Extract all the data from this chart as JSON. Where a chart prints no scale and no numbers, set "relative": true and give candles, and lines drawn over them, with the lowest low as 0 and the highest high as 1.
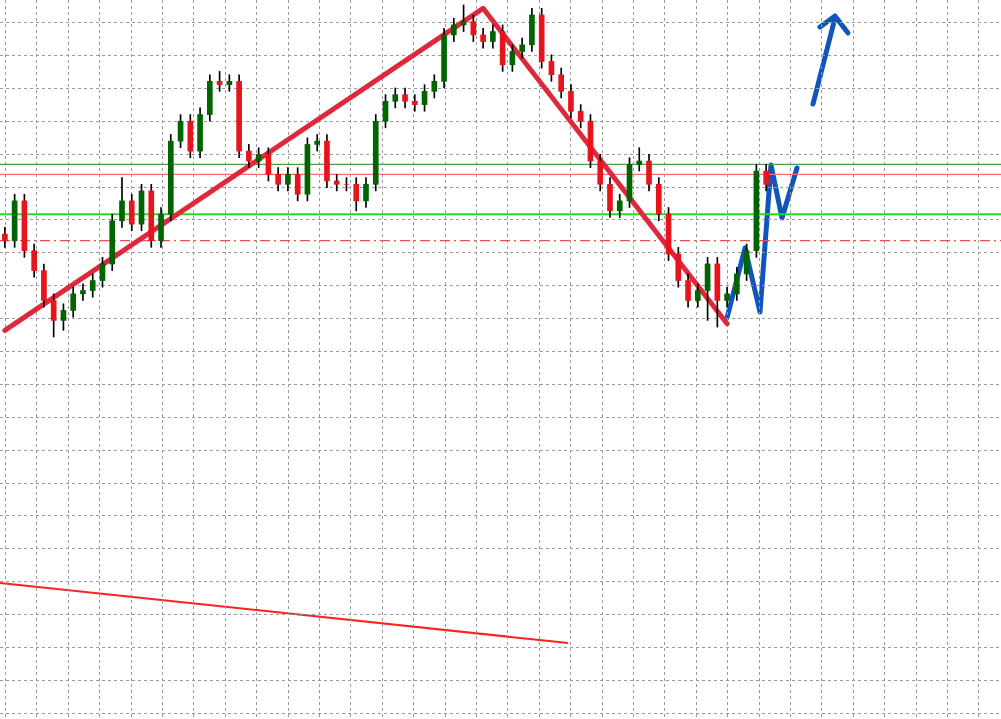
{
  "chart_data": {
    "type": "candlestick",
    "relative": true,
    "grid": true,
    "categories": [
      null,
      null,
      null,
      null,
      null,
      null,
      null,
      null,
      null,
      null,
      null,
      null,
      null,
      null,
      null,
      null,
      null,
      null,
      null,
      null,
      null,
      null,
      null,
      null,
      null,
      null,
      null,
      null,
      null,
      null,
      null,
      null,
      null,
      null,
      null,
      null,
      null,
      null,
      null,
      null,
      null,
      null,
      null,
      null,
      null,
      null,
      null,
      null,
      null,
      null,
      null,
      null,
      null,
      null,
      null,
      null,
      null,
      null,
      null,
      null,
      null,
      null,
      null,
      null,
      null,
      null,
      null,
      null,
      null,
      null,
      null,
      null,
      null,
      null,
      null,
      null,
      null,
      null,
      null
    ],
    "ohlc": [
      [
        0.31,
        0.33,
        0.27,
        0.29
      ],
      [
        0.29,
        0.43,
        0.27,
        0.41
      ],
      [
        0.41,
        0.43,
        0.24,
        0.26
      ],
      [
        0.26,
        0.28,
        0.18,
        0.2
      ],
      [
        0.2,
        0.22,
        0.09,
        0.11
      ],
      [
        0.11,
        0.13,
        0,
        0.05
      ],
      [
        0.05,
        0.1,
        0.02,
        0.08
      ],
      [
        0.08,
        0.15,
        0.06,
        0.13
      ],
      [
        0.13,
        0.16,
        0.11,
        0.14
      ],
      [
        0.14,
        0.19,
        0.12,
        0.17
      ],
      [
        0.17,
        0.24,
        0.15,
        0.22
      ],
      [
        0.22,
        0.37,
        0.2,
        0.35
      ],
      [
        0.35,
        0.48,
        0.33,
        0.41
      ],
      [
        0.41,
        0.43,
        0.32,
        0.34
      ],
      [
        0.34,
        0.46,
        0.32,
        0.44
      ],
      [
        0.44,
        0.46,
        0.27,
        0.29
      ],
      [
        0.29,
        0.39,
        0.27,
        0.37
      ],
      [
        0.37,
        0.61,
        0.35,
        0.59
      ],
      [
        0.59,
        0.67,
        0.57,
        0.65
      ],
      [
        0.65,
        0.67,
        0.54,
        0.56
      ],
      [
        0.56,
        0.69,
        0.54,
        0.67
      ],
      [
        0.67,
        0.79,
        0.65,
        0.77
      ],
      [
        0.77,
        0.8,
        0.74,
        0.76
      ],
      [
        0.76,
        0.79,
        0.74,
        0.77
      ],
      [
        0.77,
        0.79,
        0.54,
        0.56
      ],
      [
        0.56,
        0.58,
        0.51,
        0.53
      ],
      [
        0.53,
        0.57,
        0.51,
        0.55
      ],
      [
        0.55,
        0.57,
        0.47,
        0.49
      ],
      [
        0.49,
        0.51,
        0.44,
        0.46
      ],
      [
        0.46,
        0.51,
        0.44,
        0.49
      ],
      [
        0.49,
        0.51,
        0.41,
        0.43
      ],
      [
        0.43,
        0.6,
        0.41,
        0.58
      ],
      [
        0.58,
        0.61,
        0.56,
        0.59
      ],
      [
        0.59,
        0.61,
        0.45,
        0.47
      ],
      [
        0.47,
        0.49,
        0.44,
        0.46
      ],
      [
        0.46,
        0.48,
        0.44,
        0.46
      ],
      [
        0.46,
        0.48,
        0.38,
        0.41
      ],
      [
        0.41,
        0.48,
        0.39,
        0.46
      ],
      [
        0.46,
        0.67,
        0.44,
        0.65
      ],
      [
        0.65,
        0.73,
        0.63,
        0.71
      ],
      [
        0.71,
        0.75,
        0.69,
        0.73
      ],
      [
        0.73,
        0.75,
        0.69,
        0.71
      ],
      [
        0.71,
        0.73,
        0.68,
        0.7
      ],
      [
        0.7,
        0.76,
        0.68,
        0.74
      ],
      [
        0.74,
        0.79,
        0.72,
        0.77
      ],
      [
        0.77,
        0.93,
        0.75,
        0.91
      ],
      [
        0.91,
        0.96,
        0.89,
        0.94
      ],
      [
        0.94,
        1,
        0.92,
        0.95
      ],
      [
        0.95,
        0.97,
        0.89,
        0.91
      ],
      [
        0.91,
        0.93,
        0.87,
        0.89
      ],
      [
        0.89,
        0.94,
        0.87,
        0.92
      ],
      [
        0.92,
        0.94,
        0.8,
        0.82
      ],
      [
        0.82,
        0.88,
        0.8,
        0.86
      ],
      [
        0.86,
        0.9,
        0.84,
        0.88
      ],
      [
        0.88,
        0.99,
        0.86,
        0.97
      ],
      [
        0.97,
        0.99,
        0.81,
        0.83
      ],
      [
        0.83,
        0.85,
        0.77,
        0.79
      ],
      [
        0.79,
        0.81,
        0.72,
        0.74
      ],
      [
        0.74,
        0.76,
        0.66,
        0.68
      ],
      [
        0.68,
        0.7,
        0.63,
        0.65
      ],
      [
        0.65,
        0.67,
        0.51,
        0.53
      ],
      [
        0.53,
        0.55,
        0.44,
        0.46
      ],
      [
        0.46,
        0.48,
        0.36,
        0.38
      ],
      [
        0.38,
        0.43,
        0.36,
        0.41
      ],
      [
        0.41,
        0.54,
        0.39,
        0.52
      ],
      [
        0.52,
        0.57,
        0.5,
        0.53
      ],
      [
        0.53,
        0.55,
        0.44,
        0.46
      ],
      [
        0.46,
        0.48,
        0.35,
        0.37
      ],
      [
        0.37,
        0.39,
        0.23,
        0.25
      ],
      [
        0.25,
        0.27,
        0.15,
        0.17
      ],
      [
        0.17,
        0.19,
        0.09,
        0.11
      ],
      [
        0.11,
        0.16,
        0.09,
        0.14
      ],
      [
        0.14,
        0.24,
        0.05,
        0.22
      ],
      [
        0.22,
        0.24,
        0.03,
        0.11
      ],
      [
        0.11,
        0.15,
        0.09,
        0.13
      ],
      [
        0.13,
        0.21,
        0.11,
        0.19
      ],
      [
        0.19,
        0.28,
        0.17,
        0.26
      ],
      [
        0.26,
        0.52,
        0.24,
        0.5
      ],
      [
        0.5,
        0.52,
        0.44,
        0.46
      ]
    ],
    "colors": [
      "#e8141b",
      "#006400",
      "#e8141b",
      "#e8141b",
      "#e8141b",
      "#e8141b",
      "#006400",
      "#006400",
      "#006400",
      "#006400",
      "#006400",
      "#006400",
      "#006400",
      "#e8141b",
      "#006400",
      "#e8141b",
      "#006400",
      "#006400",
      "#006400",
      "#e8141b",
      "#006400",
      "#006400",
      "#e8141b",
      "#006400",
      "#e8141b",
      "#e8141b",
      "#006400",
      "#e8141b",
      "#e8141b",
      "#006400",
      "#e8141b",
      "#006400",
      "#006400",
      "#e8141b",
      "#e8141b",
      "#e8141b",
      "#e8141b",
      "#006400",
      "#006400",
      "#006400",
      "#006400",
      "#e8141b",
      "#e8141b",
      "#006400",
      "#006400",
      "#006400",
      "#006400",
      "#006400",
      "#e8141b",
      "#e8141b",
      "#006400",
      "#e8141b",
      "#006400",
      "#006400",
      "#006400",
      "#e8141b",
      "#e8141b",
      "#e8141b",
      "#e8141b",
      "#e8141b",
      "#e8141b",
      "#e8141b",
      "#e8141b",
      "#006400",
      "#006400",
      "#006400",
      "#e8141b",
      "#e8141b",
      "#e8141b",
      "#e8141b",
      "#e8141b",
      "#006400",
      "#006400",
      "#e8141b",
      "#006400",
      "#006400",
      "#006400",
      "#006400",
      "#e8141b"
    ],
    "series": [
      {
        "type": "line",
        "color": "#e0283c",
        "values": [
          0.02,
          null,
          null,
          null,
          null,
          null,
          null,
          null,
          null,
          null,
          null,
          null,
          null,
          null,
          null,
          null,
          null,
          null,
          null,
          null,
          null,
          null,
          null,
          null,
          null,
          null,
          null,
          null,
          null,
          null,
          null,
          null,
          null,
          null,
          null,
          null,
          null,
          null,
          null,
          null,
          null,
          null,
          null,
          null,
          null,
          null,
          null,
          null,
          null,
          0.99,
          null,
          null,
          null,
          null,
          null,
          null,
          null,
          null,
          null,
          null,
          null,
          null,
          null,
          null,
          null,
          null,
          null,
          null,
          null,
          null,
          null,
          null,
          null,
          null,
          0.04,
          null,
          null,
          null,
          null
        ]
      }
    ],
    "ref_lines": [
      {
        "axis": "y",
        "value": 0.52,
        "color": "#4e9a4e",
        "line_style": "solid"
      },
      {
        "axis": "y",
        "value": 0.49,
        "color": "#ff6a6a",
        "line_style": "solid"
      },
      {
        "axis": "y",
        "value": 0.37,
        "color": "#1ee01e",
        "line_style": "solid"
      },
      {
        "axis": "y",
        "value": 0.29,
        "color": "#e85050",
        "line_style": "dashed"
      }
    ]
  }
}
